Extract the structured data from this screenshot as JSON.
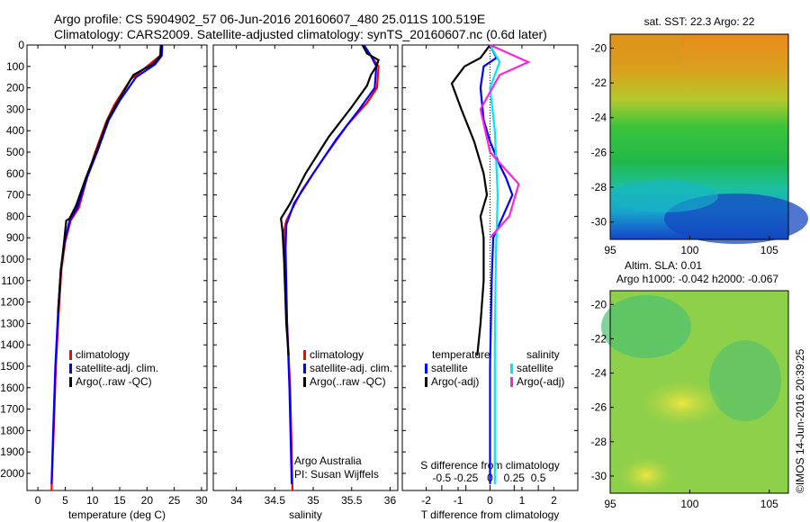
{
  "header": {
    "line1": "Argo profile: CS 5904902_57 06-Jun-2016 20160607_480 25.011S 100.519E",
    "line2": "Climatology: CARS2009. Satellite-adjusted climatology: synTS_20160607.nc (0.6d later)"
  },
  "colors": {
    "climatology": "#ff0000",
    "satellite": "#0000ff",
    "argo": "#000000",
    "satellite_s": "#00e5ff",
    "argo_s": "#ff22dd"
  },
  "depth_ticks": [
    0,
    100,
    200,
    300,
    400,
    500,
    600,
    700,
    800,
    900,
    1000,
    1100,
    1200,
    1300,
    1400,
    1500,
    1600,
    1700,
    1800,
    1900,
    2000
  ],
  "chart_data": [
    {
      "id": "temperature",
      "type": "line",
      "xlabel": "temperature (deg C)",
      "xlim": [
        -2,
        31
      ],
      "ylim": [
        2080,
        0
      ],
      "xticks": [
        0,
        5,
        10,
        15,
        20,
        25,
        30
      ],
      "legend": [
        "climatology",
        "satellite-adj. clim.",
        "Argo(..raw -QC)"
      ],
      "series": [
        {
          "name": "climatology",
          "color": "#ff0000",
          "points": [
            [
              22.5,
              0
            ],
            [
              22.4,
              50
            ],
            [
              20,
              100
            ],
            [
              17,
              160
            ],
            [
              14,
              280
            ],
            [
              12.5,
              360
            ],
            [
              10.5,
              500
            ],
            [
              9,
              620
            ],
            [
              7.5,
              760
            ],
            [
              6,
              820
            ],
            [
              5,
              920
            ],
            [
              4.3,
              1050
            ],
            [
              3.8,
              1250
            ],
            [
              3.3,
              1500
            ],
            [
              2.9,
              1800
            ],
            [
              2.6,
              2000
            ],
            [
              2.5,
              2080
            ]
          ]
        },
        {
          "name": "satellite-adj. clim.",
          "color": "#0000ff",
          "points": [
            [
              22.8,
              0
            ],
            [
              22.7,
              50
            ],
            [
              21.5,
              90
            ],
            [
              18,
              150
            ],
            [
              15,
              260
            ],
            [
              13,
              350
            ],
            [
              11,
              490
            ],
            [
              9,
              620
            ],
            [
              7.2,
              760
            ],
            [
              5.8,
              820
            ],
            [
              4.9,
              920
            ],
            [
              4.2,
              1050
            ],
            [
              3.7,
              1250
            ],
            [
              3.2,
              1500
            ],
            [
              2.8,
              1800
            ],
            [
              2.5,
              2050
            ]
          ]
        },
        {
          "name": "Argo(..raw -QC)",
          "color": "#000000",
          "points": [
            [
              22.6,
              0
            ],
            [
              22.5,
              50
            ],
            [
              21,
              90
            ],
            [
              17.5,
              140
            ],
            [
              14.5,
              270
            ],
            [
              12.8,
              350
            ],
            [
              10.8,
              490
            ],
            [
              8.8,
              620
            ],
            [
              7,
              750
            ],
            [
              5.8,
              810
            ],
            [
              5.2,
              820
            ],
            [
              4.8,
              920
            ],
            [
              4.2,
              1050
            ],
            [
              3.7,
              1250
            ]
          ]
        }
      ]
    },
    {
      "id": "salinity",
      "type": "line",
      "xlabel": "salinity",
      "xlim": [
        33.7,
        36.1
      ],
      "ylim": [
        2080,
        0
      ],
      "xticks": [
        34,
        34.5,
        35,
        35.5,
        36
      ],
      "legend": [
        "climatology",
        "satellite-adj. clim.",
        "Argo(..raw -QC)"
      ],
      "annotation": [
        "Argo Australia",
        "PI: Susan Wijffels"
      ],
      "series": [
        {
          "name": "climatology",
          "color": "#ff0000",
          "points": [
            [
              35.65,
              0
            ],
            [
              35.75,
              50
            ],
            [
              35.85,
              100
            ],
            [
              35.83,
              200
            ],
            [
              35.7,
              270
            ],
            [
              35.45,
              370
            ],
            [
              35.15,
              520
            ],
            [
              34.85,
              680
            ],
            [
              34.65,
              820
            ],
            [
              34.62,
              870
            ],
            [
              34.63,
              1000
            ],
            [
              34.66,
              1300
            ],
            [
              34.7,
              1600
            ],
            [
              34.72,
              1900
            ],
            [
              34.73,
              2080
            ]
          ]
        },
        {
          "name": "satellite-adj. clim.",
          "color": "#0000ff",
          "points": [
            [
              35.66,
              0
            ],
            [
              35.75,
              50
            ],
            [
              35.82,
              100
            ],
            [
              35.8,
              200
            ],
            [
              35.6,
              300
            ],
            [
              35.3,
              440
            ],
            [
              35,
              600
            ],
            [
              34.75,
              740
            ],
            [
              34.65,
              840
            ],
            [
              34.64,
              950
            ],
            [
              34.66,
              1300
            ],
            [
              34.69,
              1600
            ],
            [
              34.71,
              1900
            ],
            [
              34.72,
              2050
            ]
          ]
        },
        {
          "name": "Argo(..raw -QC)",
          "color": "#000000",
          "points": [
            [
              35.64,
              0
            ],
            [
              35.7,
              40
            ],
            [
              35.85,
              70
            ],
            [
              35.82,
              100
            ],
            [
              35.75,
              140
            ],
            [
              35.7,
              190
            ],
            [
              35.5,
              290
            ],
            [
              35.2,
              430
            ],
            [
              34.9,
              600
            ],
            [
              34.7,
              740
            ],
            [
              34.58,
              810
            ],
            [
              34.6,
              870
            ],
            [
              34.62,
              1000
            ],
            [
              34.65,
              1300
            ],
            [
              34.68,
              1450
            ]
          ]
        }
      ]
    },
    {
      "id": "difference",
      "type": "line",
      "xlabel": "T difference from climatology",
      "xlabel2": "S difference from climatology",
      "xlim": [
        -2.75,
        2.75
      ],
      "ylim": [
        2080,
        0
      ],
      "xticks": [
        -2,
        -1,
        0,
        1,
        2
      ],
      "sticks": [
        -0.5,
        -0.25,
        0,
        0.25,
        0.5
      ],
      "stick_labels": [
        "-0.5",
        "-0.25",
        "0",
        "0.25",
        "0.5"
      ],
      "legend_headers": [
        "temperature",
        "salinity"
      ],
      "legend": [
        "satellite",
        "Argo(-adj)",
        "satellite",
        "Argo(-adj)"
      ],
      "series": [
        {
          "name": "satellite",
          "color": "#0000ff",
          "points": [
            [
              0,
              0
            ],
            [
              0.2,
              60
            ],
            [
              -0.2,
              100
            ],
            [
              -0.3,
              200
            ],
            [
              -0.2,
              350
            ],
            [
              0,
              450
            ],
            [
              0.3,
              560
            ],
            [
              0.5,
              620
            ],
            [
              0.7,
              700
            ],
            [
              0.4,
              800
            ],
            [
              0.1,
              900
            ],
            [
              0.05,
              1100
            ],
            [
              0,
              1500
            ],
            [
              0,
              2050
            ]
          ]
        },
        {
          "name": "Argo(-adj)",
          "color": "#000000",
          "points": [
            [
              0,
              0
            ],
            [
              -0.3,
              60
            ],
            [
              -0.8,
              100
            ],
            [
              -1.2,
              180
            ],
            [
              -0.9,
              300
            ],
            [
              -0.5,
              450
            ],
            [
              -0.2,
              600
            ],
            [
              -0.1,
              700
            ],
            [
              -0.3,
              800
            ],
            [
              -0.2,
              900
            ],
            [
              -0.2,
              1100
            ],
            [
              -0.3,
              1300
            ],
            [
              -0.4,
              1450
            ]
          ]
        },
        {
          "name": "satellite",
          "color": "#00e5ff",
          "points": [
            [
              0,
              0
            ],
            [
              0.1,
              80
            ],
            [
              0,
              200
            ],
            [
              0.05,
              400
            ],
            [
              0.08,
              700
            ],
            [
              0.06,
              1000
            ],
            [
              0.05,
              1400
            ],
            [
              0.05,
              2050
            ]
          ]
        },
        {
          "name": "Argo(-adj)",
          "color": "#ff22dd",
          "points": [
            [
              0,
              0
            ],
            [
              0.4,
              80
            ],
            [
              0.1,
              140
            ],
            [
              -0.1,
              300
            ],
            [
              0,
              500
            ],
            [
              0.3,
              650
            ],
            [
              0.2,
              800
            ],
            [
              0,
              900
            ]
          ]
        }
      ]
    }
  ],
  "map_panels": [
    {
      "id": "sst",
      "title": "sat. SST: 22.3  Argo: 22",
      "xticks": [
        95,
        100,
        105
      ],
      "yticks": [
        -20,
        -22,
        -24,
        -26,
        -28,
        -30
      ]
    },
    {
      "id": "sla",
      "title_line1": "Altim. SLA: 0.01",
      "title_line2": "Argo h1000: -0.042  h2000: -0.067",
      "xticks": [
        95,
        100,
        105
      ],
      "yticks": [
        -20,
        -22,
        -24,
        -26,
        -28,
        -30
      ]
    }
  ],
  "footer": {
    "stamp": "©IMOS 14-Jun-2016 20:39:25"
  }
}
